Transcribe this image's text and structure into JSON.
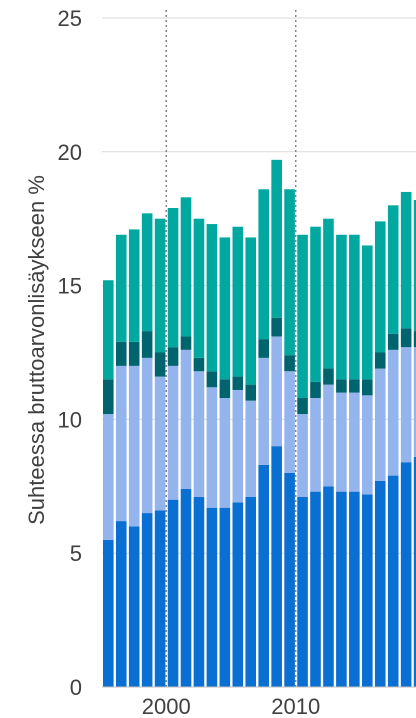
{
  "chart_data": {
    "type": "bar",
    "stacked": true,
    "title": "",
    "xlabel": "",
    "ylabel": "Suhteessa bruttoarvonlisäykseen %",
    "ylim": [
      0,
      25
    ],
    "y_ticks": [
      "0",
      "5",
      "10",
      "15",
      "20",
      "25"
    ],
    "x_ticks": [
      {
        "year": 2000,
        "label": "2000"
      },
      {
        "year": 2010,
        "label": "2010"
      }
    ],
    "grid": "horizontal",
    "vertical_reference_lines_at": [
      2000,
      2010
    ],
    "legend": "none",
    "x": [
      1995,
      1996,
      1997,
      1998,
      1999,
      2000,
      2001,
      2002,
      2003,
      2004,
      2005,
      2006,
      2007,
      2008,
      2009,
      2010,
      2011,
      2012,
      2013,
      2014,
      2015,
      2016,
      2017,
      2018,
      2019
    ],
    "series": [
      {
        "color": "#0a6fd2",
        "values": [
          5.5,
          6.2,
          6.0,
          6.5,
          6.6,
          7.0,
          7.4,
          7.1,
          6.7,
          6.7,
          6.9,
          7.1,
          8.3,
          9.0,
          8.0,
          7.1,
          7.3,
          7.5,
          7.3,
          7.3,
          7.2,
          7.7,
          7.9,
          8.4,
          8.6
        ]
      },
      {
        "color": "#93b4ec",
        "values": [
          4.7,
          5.8,
          6.0,
          5.8,
          5.0,
          5.0,
          5.2,
          4.7,
          4.5,
          4.1,
          4.2,
          3.6,
          4.0,
          4.1,
          3.8,
          3.1,
          3.5,
          3.8,
          3.7,
          3.7,
          3.7,
          4.2,
          4.7,
          4.3,
          4.1
        ]
      },
      {
        "color": "#00646e",
        "values": [
          1.3,
          0.9,
          0.9,
          1.0,
          0.9,
          0.7,
          0.5,
          0.5,
          0.6,
          0.7,
          0.5,
          0.6,
          0.7,
          0.7,
          0.6,
          0.6,
          0.6,
          0.6,
          0.5,
          0.5,
          0.6,
          0.6,
          0.6,
          0.7,
          0.6
        ]
      },
      {
        "color": "#00a8a0",
        "values": [
          3.7,
          4.0,
          4.2,
          4.4,
          5.0,
          5.2,
          5.2,
          5.2,
          5.5,
          5.3,
          5.6,
          5.5,
          5.6,
          5.9,
          6.2,
          6.1,
          5.8,
          5.6,
          5.4,
          5.4,
          5.0,
          4.9,
          4.8,
          5.1,
          4.9
        ]
      }
    ]
  }
}
